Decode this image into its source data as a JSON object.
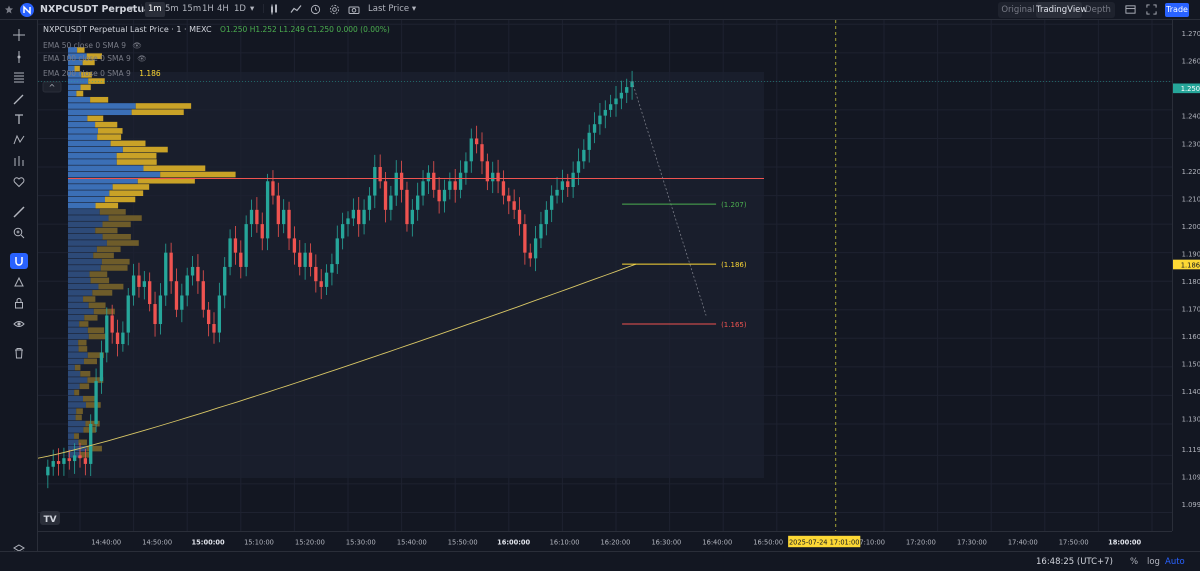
{
  "toolbar": {
    "symbol": "NXPCUSDT Perpetual",
    "intervals": [
      {
        "label": "1m",
        "active": true
      },
      {
        "label": "5m",
        "active": false
      },
      {
        "label": "15m",
        "active": false
      },
      {
        "label": "1H",
        "active": false
      },
      {
        "label": "4H",
        "active": false
      },
      {
        "label": "1D",
        "active": false
      }
    ],
    "price_source": "Last Price",
    "views": [
      {
        "label": "Original",
        "active": false
      },
      {
        "label": "TradingView",
        "active": true
      },
      {
        "label": "Depth",
        "active": false
      }
    ],
    "trade_label": "Trade"
  },
  "legend": {
    "title": "NXPCUSDT Perpetual Last Price · 1 · MEXC",
    "ohlc": "O1.250 H1.252 L1.249 C1.250 0.000 (0.00%)",
    "indicators": [
      {
        "label": "EMA 50 close 0 SMA 9",
        "value": ""
      },
      {
        "label": "EMA 100 close 0 SMA 9",
        "value": ""
      },
      {
        "label": "EMA 200 close 0 SMA 9",
        "value": "1.186"
      }
    ]
  },
  "chart_data": {
    "type": "candlestick",
    "y_range": [
      1.0925,
      1.2715
    ],
    "price_ticks": [
      "1.270",
      "1.260",
      "1.250",
      "1.240",
      "1.230",
      "1.220",
      "1.210",
      "1.200",
      "1.190",
      "1.180",
      "1.170",
      "1.160",
      "1.150",
      "1.140",
      "1.130",
      "1.119",
      "1.109",
      "1.099"
    ],
    "time_ticks": [
      "14:40:00",
      "14:50:00",
      "15:00:00",
      "15:10:00",
      "15:20:00",
      "15:30:00",
      "15:40:00",
      "15:50:00",
      "16:00:00",
      "16:10:00",
      "16:20:00",
      "16:30:00",
      "16:40:00",
      "16:50:00",
      "17:10:00",
      "17:20:00",
      "17:30:00",
      "17:40:00",
      "17:50:00",
      "18:00:00"
    ],
    "time_bold": [
      "15:00:00",
      "16:00:00",
      "18:00:00"
    ],
    "candle_start": "14:34",
    "candle_interval_min": 1,
    "closes": [
      1.115,
      1.117,
      1.116,
      1.118,
      1.117,
      1.119,
      1.118,
      1.116,
      1.13,
      1.145,
      1.155,
      1.168,
      1.162,
      1.158,
      1.162,
      1.175,
      1.182,
      1.178,
      1.18,
      1.172,
      1.165,
      1.175,
      1.19,
      1.18,
      1.17,
      1.175,
      1.182,
      1.185,
      1.18,
      1.17,
      1.165,
      1.162,
      1.175,
      1.185,
      1.195,
      1.19,
      1.185,
      1.2,
      1.205,
      1.2,
      1.195,
      1.215,
      1.21,
      1.2,
      1.205,
      1.195,
      1.19,
      1.185,
      1.19,
      1.185,
      1.18,
      1.178,
      1.183,
      1.186,
      1.195,
      1.2,
      1.202,
      1.205,
      1.2,
      1.205,
      1.21,
      1.22,
      1.215,
      1.205,
      1.21,
      1.218,
      1.212,
      1.2,
      1.205,
      1.21,
      1.215,
      1.218,
      1.212,
      1.208,
      1.212,
      1.215,
      1.212,
      1.218,
      1.222,
      1.23,
      1.228,
      1.222,
      1.215,
      1.218,
      1.215,
      1.21,
      1.208,
      1.205,
      1.2,
      1.19,
      1.188,
      1.195,
      1.2,
      1.205,
      1.21,
      1.212,
      1.215,
      1.213,
      1.218,
      1.222,
      1.226,
      1.232,
      1.235,
      1.238,
      1.24,
      1.242,
      1.244,
      1.246,
      1.248,
      1.25
    ],
    "ema200": {
      "from": 1.118,
      "to": 1.186,
      "label": "EMA 200"
    },
    "horizontal_line": 1.216,
    "current_price": "1.250",
    "ema_price_label": "1.186",
    "projection": {
      "levels": [
        {
          "value": 1.207,
          "label": "(1.207)",
          "color": "#4caf50"
        },
        {
          "value": 1.186,
          "label": "(1.186)",
          "color": "#fdd835"
        },
        {
          "value": 1.165,
          "label": "(1.165)",
          "color": "#ef5350"
        }
      ]
    },
    "crosshair_time": "2025-07-24   17:01:00",
    "volume_profile_range": [
      1.118,
      1.262
    ]
  },
  "bottom": {
    "clock": "16:48:25 (UTC+7)",
    "percent": "%",
    "log": "log",
    "auto": "Auto"
  },
  "colors": {
    "up": "#26a69a",
    "down": "#ef5350",
    "bg": "#131722",
    "accent": "#2962ff"
  }
}
